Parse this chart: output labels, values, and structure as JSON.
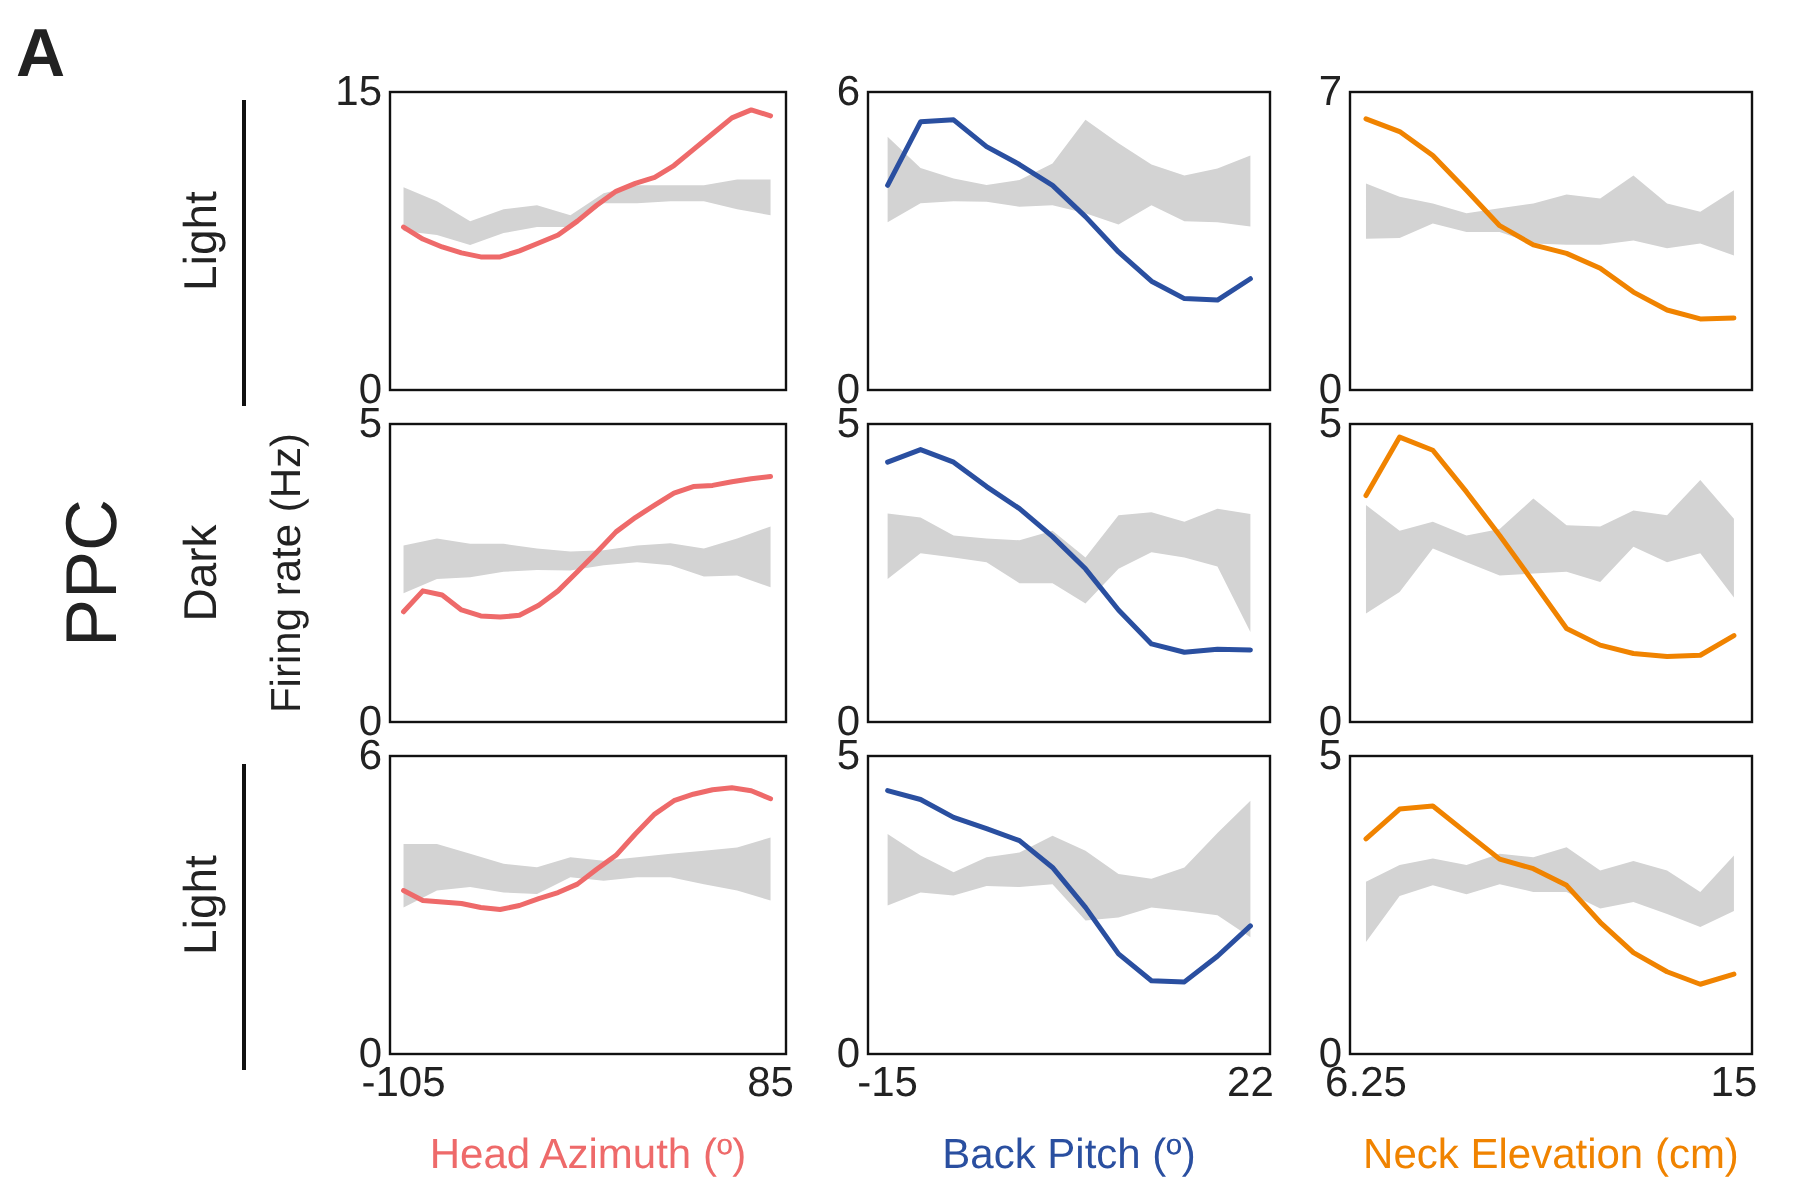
{
  "chart_data": [
    {
      "type": "line",
      "annotations": [
        "A"
      ],
      "ylabel": "Light",
      "xlim": [
        -112,
        93
      ],
      "ylim": [
        0,
        15
      ],
      "yticks": [
        0,
        15
      ],
      "tick_labels": "y",
      "series": [
        {
          "color": "#d3d3d3",
          "x": [
            -105,
            -87.7,
            -70.5,
            -53.2,
            -35.9,
            -18.6,
            -1.4,
            15.9,
            33.2,
            50.5,
            67.7,
            85
          ],
          "values": [
            null,
            null,
            null,
            null,
            null,
            null,
            null,
            null,
            null,
            null,
            null,
            null
          ],
          "lower": [
            8.0,
            7.8,
            7.3,
            7.9,
            8.2,
            8.2,
            9.4,
            9.4,
            9.5,
            9.5,
            9.1,
            8.8
          ],
          "upper": [
            10.2,
            9.5,
            8.5,
            9.1,
            9.3,
            8.8,
            9.9,
            10.3,
            10.3,
            10.3,
            10.6,
            10.6
          ]
        },
        {
          "color": "#ee6a6a",
          "x": [
            -105,
            -95,
            -85,
            -75,
            -65,
            -55,
            -45,
            -35,
            -25,
            -15,
            -5,
            5,
            15,
            25,
            35,
            45,
            55,
            65,
            75,
            85
          ],
          "values": [
            8.2,
            7.6,
            7.2,
            6.9,
            6.7,
            6.7,
            7.0,
            7.4,
            7.8,
            8.5,
            9.3,
            10.0,
            10.4,
            10.7,
            11.3,
            12.1,
            12.9,
            13.7,
            14.1,
            13.8
          ]
        }
      ]
    },
    {
      "type": "line",
      "xlim": [
        -17,
        24
      ],
      "ylim": [
        0,
        6
      ],
      "yticks": [
        0,
        6
      ],
      "tick_labels": "y",
      "x": [
        -15,
        -11.64,
        -8.27,
        -4.91,
        -1.55,
        1.82,
        5.18,
        8.55,
        11.91,
        15.27,
        18.64,
        22
      ],
      "series": [
        {
          "color": "#d3d3d3",
          "values": [
            null,
            null,
            null,
            null,
            null,
            null,
            null,
            null,
            null,
            null,
            null,
            null
          ],
          "lower": [
            3.38,
            3.76,
            3.8,
            3.79,
            3.69,
            3.72,
            3.56,
            3.33,
            3.72,
            3.4,
            3.38,
            3.29
          ],
          "upper": [
            5.1,
            4.47,
            4.26,
            4.13,
            4.23,
            4.56,
            5.44,
            4.97,
            4.54,
            4.32,
            4.46,
            4.72
          ]
        },
        {
          "color": "#2a4fa0",
          "values": [
            4.12,
            5.4,
            5.44,
            4.9,
            4.54,
            4.12,
            3.49,
            2.78,
            2.19,
            1.84,
            1.81,
            2.24
          ]
        }
      ]
    },
    {
      "type": "line",
      "xlim": [
        5.87,
        15.43
      ],
      "ylim": [
        0,
        7
      ],
      "yticks": [
        0,
        7
      ],
      "tick_labels": "y",
      "x": [
        6.25,
        7.05,
        7.84,
        8.64,
        9.43,
        10.23,
        11.02,
        11.82,
        12.61,
        13.41,
        14.2,
        15
      ],
      "series": [
        {
          "color": "#d3d3d3",
          "values": [
            null,
            null,
            null,
            null,
            null,
            null,
            null,
            null,
            null,
            null,
            null,
            null
          ],
          "lower": [
            3.55,
            3.57,
            3.91,
            3.71,
            3.71,
            3.44,
            3.41,
            3.41,
            3.51,
            3.33,
            3.44,
            3.16
          ],
          "upper": [
            4.85,
            4.54,
            4.38,
            4.15,
            4.27,
            4.38,
            4.59,
            4.5,
            5.04,
            4.38,
            4.19,
            4.69
          ]
        },
        {
          "color": "#f08300",
          "values": [
            6.37,
            6.07,
            5.51,
            4.69,
            3.86,
            3.41,
            3.21,
            2.86,
            2.3,
            1.88,
            1.67,
            1.69
          ]
        }
      ]
    },
    {
      "type": "line",
      "annotations": [
        "PPC",
        "Firing rate (Hz)"
      ],
      "ylabel": "Dark",
      "xlim": [
        -112,
        93
      ],
      "ylim": [
        0,
        5
      ],
      "yticks": [
        0,
        5
      ],
      "tick_labels": "y",
      "series": [
        {
          "color": "#d3d3d3",
          "x": [
            -105,
            -87.7,
            -70.5,
            -53.2,
            -35.9,
            -18.6,
            -1.4,
            15.9,
            33.2,
            50.5,
            67.7,
            85
          ],
          "values": [
            null,
            null,
            null,
            null,
            null,
            null,
            null,
            null,
            null,
            null,
            null,
            null
          ],
          "lower": [
            2.16,
            2.4,
            2.43,
            2.52,
            2.55,
            2.54,
            2.63,
            2.68,
            2.63,
            2.44,
            2.46,
            2.26
          ],
          "upper": [
            2.96,
            3.08,
            2.99,
            2.99,
            2.91,
            2.86,
            2.88,
            2.96,
            3.0,
            2.91,
            3.08,
            3.28
          ]
        },
        {
          "color": "#ee6a6a",
          "x": [
            -105,
            -95,
            -85,
            -75,
            -65,
            -55,
            -45,
            -35,
            -25,
            -15,
            -5,
            5,
            15,
            25,
            35,
            45,
            55,
            65,
            75,
            85
          ],
          "values": [
            1.85,
            2.2,
            2.13,
            1.88,
            1.78,
            1.76,
            1.79,
            1.96,
            2.2,
            2.52,
            2.85,
            3.19,
            3.43,
            3.64,
            3.84,
            3.95,
            3.97,
            4.03,
            4.08,
            4.12
          ]
        }
      ]
    },
    {
      "type": "line",
      "xlim": [
        -17,
        24
      ],
      "ylim": [
        0,
        5
      ],
      "yticks": [
        0,
        5
      ],
      "tick_labels": "y",
      "x": [
        -15,
        -11.64,
        -8.27,
        -4.91,
        -1.55,
        1.82,
        5.18,
        8.55,
        11.91,
        15.27,
        18.64,
        22
      ],
      "series": [
        {
          "color": "#d3d3d3",
          "values": [
            null,
            null,
            null,
            null,
            null,
            null,
            null,
            null,
            null,
            null,
            null,
            null
          ],
          "lower": [
            2.4,
            2.83,
            2.76,
            2.68,
            2.33,
            2.33,
            1.99,
            2.57,
            2.85,
            2.76,
            2.61,
            1.51
          ],
          "upper": [
            3.5,
            3.43,
            3.13,
            3.08,
            3.05,
            3.21,
            2.76,
            3.47,
            3.52,
            3.36,
            3.58,
            3.49
          ]
        },
        {
          "color": "#2a4fa0",
          "values": [
            4.36,
            4.57,
            4.36,
            3.95,
            3.58,
            3.11,
            2.57,
            1.88,
            1.31,
            1.17,
            1.22,
            1.21
          ]
        }
      ]
    },
    {
      "type": "line",
      "xlim": [
        5.87,
        15.43
      ],
      "ylim": [
        0,
        5
      ],
      "yticks": [
        0,
        5
      ],
      "tick_labels": "y",
      "x": [
        6.25,
        7.05,
        7.84,
        8.64,
        9.43,
        10.23,
        11.02,
        11.82,
        12.61,
        13.41,
        14.2,
        15
      ],
      "series": [
        {
          "color": "#d3d3d3",
          "values": [
            null,
            null,
            null,
            null,
            null,
            null,
            null,
            null,
            null,
            null,
            null,
            null
          ],
          "lower": [
            1.82,
            2.18,
            2.91,
            2.68,
            2.46,
            2.49,
            2.52,
            2.35,
            2.94,
            2.68,
            2.83,
            2.09
          ],
          "upper": [
            3.64,
            3.21,
            3.36,
            3.13,
            3.24,
            3.75,
            3.3,
            3.28,
            3.55,
            3.47,
            4.06,
            3.41
          ]
        },
        {
          "color": "#f08300",
          "values": [
            3.8,
            4.78,
            4.56,
            3.86,
            3.13,
            2.35,
            1.57,
            1.29,
            1.15,
            1.1,
            1.12,
            1.45
          ]
        }
      ]
    },
    {
      "type": "line",
      "ylabel": "Light",
      "xlabel": "Head Azimuth (º)",
      "xlim": [
        -112,
        93
      ],
      "xticks": [
        -105,
        85
      ],
      "ylim": [
        0,
        6
      ],
      "yticks": [
        0,
        6
      ],
      "series": [
        {
          "color": "#d3d3d3",
          "x": [
            -105,
            -87.7,
            -70.5,
            -53.2,
            -35.9,
            -18.6,
            -1.4,
            15.9,
            33.2,
            50.5,
            67.7,
            85
          ],
          "values": [
            null,
            null,
            null,
            null,
            null,
            null,
            null,
            null,
            null,
            null,
            null,
            null
          ],
          "lower": [
            2.95,
            3.29,
            3.36,
            3.25,
            3.22,
            3.56,
            3.49,
            3.56,
            3.56,
            3.42,
            3.29,
            3.09
          ],
          "upper": [
            4.23,
            4.23,
            4.03,
            3.83,
            3.76,
            3.96,
            3.89,
            3.96,
            4.03,
            4.09,
            4.16,
            4.36
          ]
        },
        {
          "color": "#ee6a6a",
          "x": [
            -105,
            -95,
            -85,
            -75,
            -65,
            -55,
            -45,
            -35,
            -25,
            -15,
            -5,
            5,
            15,
            25,
            35,
            45,
            55,
            65,
            75,
            85
          ],
          "values": [
            3.29,
            3.09,
            3.06,
            3.03,
            2.95,
            2.91,
            2.99,
            3.13,
            3.25,
            3.42,
            3.72,
            4.0,
            4.43,
            4.83,
            5.1,
            5.23,
            5.32,
            5.36,
            5.3,
            5.14
          ]
        }
      ]
    },
    {
      "type": "line",
      "xlabel": "Back Pitch (º)",
      "xlim": [
        -17,
        24
      ],
      "xticks": [
        -15,
        22
      ],
      "ylim": [
        0,
        5
      ],
      "yticks": [
        0,
        5
      ],
      "x": [
        -15,
        -11.64,
        -8.27,
        -4.91,
        -1.55,
        1.82,
        5.18,
        8.55,
        11.91,
        15.27,
        18.64,
        22
      ],
      "series": [
        {
          "color": "#d3d3d3",
          "values": [
            null,
            null,
            null,
            null,
            null,
            null,
            null,
            null,
            null,
            null,
            null,
            null
          ],
          "lower": [
            2.49,
            2.71,
            2.66,
            2.82,
            2.8,
            2.85,
            2.24,
            2.29,
            2.46,
            2.4,
            2.33,
            1.96
          ],
          "upper": [
            3.69,
            3.33,
            3.05,
            3.3,
            3.38,
            3.66,
            3.41,
            3.02,
            2.94,
            3.13,
            3.71,
            4.25
          ]
        },
        {
          "color": "#2a4fa0",
          "values": [
            4.42,
            4.27,
            3.97,
            3.78,
            3.58,
            3.13,
            2.46,
            1.68,
            1.23,
            1.21,
            1.64,
            2.15
          ]
        }
      ]
    },
    {
      "type": "line",
      "xlabel": "Neck Elevation (cm)",
      "xlim": [
        5.87,
        15.43
      ],
      "xticks": [
        6.25,
        15
      ],
      "ylim": [
        0,
        5
      ],
      "yticks": [
        0,
        5
      ],
      "x": [
        6.25,
        7.05,
        7.84,
        8.64,
        9.43,
        10.23,
        11.02,
        11.82,
        12.61,
        13.41,
        14.2,
        15
      ],
      "series": [
        {
          "color": "#d3d3d3",
          "values": [
            null,
            null,
            null,
            null,
            null,
            null,
            null,
            null,
            null,
            null,
            null,
            null
          ],
          "lower": [
            1.88,
            2.65,
            2.83,
            2.68,
            2.85,
            2.72,
            2.72,
            2.44,
            2.55,
            2.35,
            2.13,
            2.4
          ],
          "upper": [
            2.89,
            3.17,
            3.28,
            3.17,
            3.36,
            3.3,
            3.47,
            3.08,
            3.24,
            3.08,
            2.72,
            3.33
          ]
        },
        {
          "color": "#f08300",
          "values": [
            3.61,
            4.11,
            4.16,
            3.71,
            3.27,
            3.11,
            2.83,
            2.21,
            1.7,
            1.38,
            1.17,
            1.34
          ]
        }
      ]
    }
  ]
}
